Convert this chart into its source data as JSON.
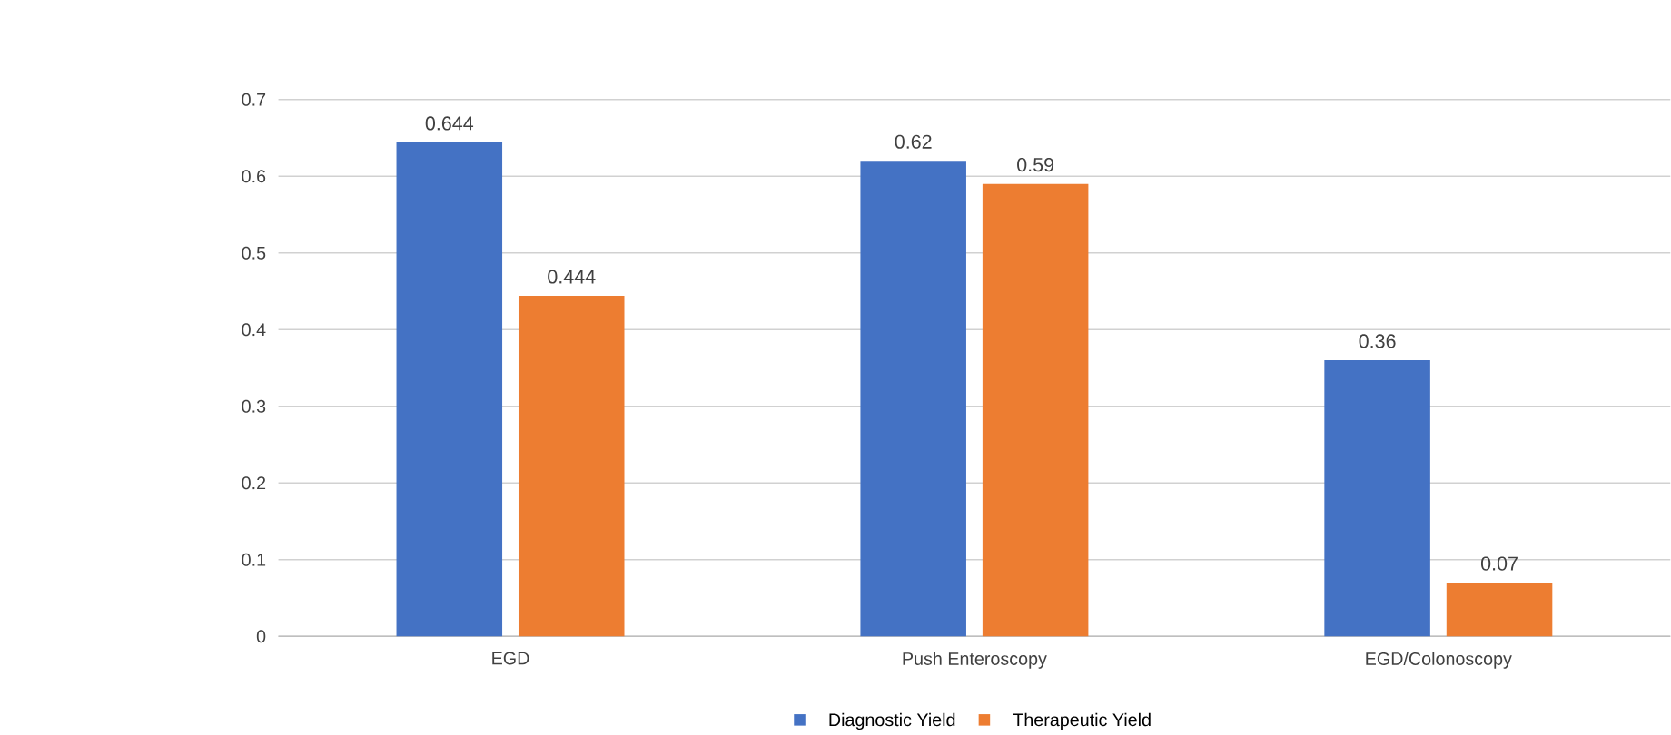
{
  "chart_data": {
    "type": "bar",
    "categories": [
      "EGD",
      "Push Enteroscopy",
      "EGD/Colonoscopy"
    ],
    "series": [
      {
        "name": "Diagnostic Yield",
        "color": "#4472c4",
        "values": [
          0.644,
          0.62,
          0.36
        ]
      },
      {
        "name": "Therapeutic Yield",
        "color": "#ed7d31",
        "values": [
          0.444,
          0.59,
          0.07
        ]
      }
    ],
    "ylim": [
      0,
      0.7
    ],
    "yticks": [
      0,
      0.1,
      0.2,
      0.3,
      0.4,
      0.5,
      0.6,
      0.7
    ],
    "grid": "y",
    "legend": "bottom",
    "data_labels": true
  }
}
